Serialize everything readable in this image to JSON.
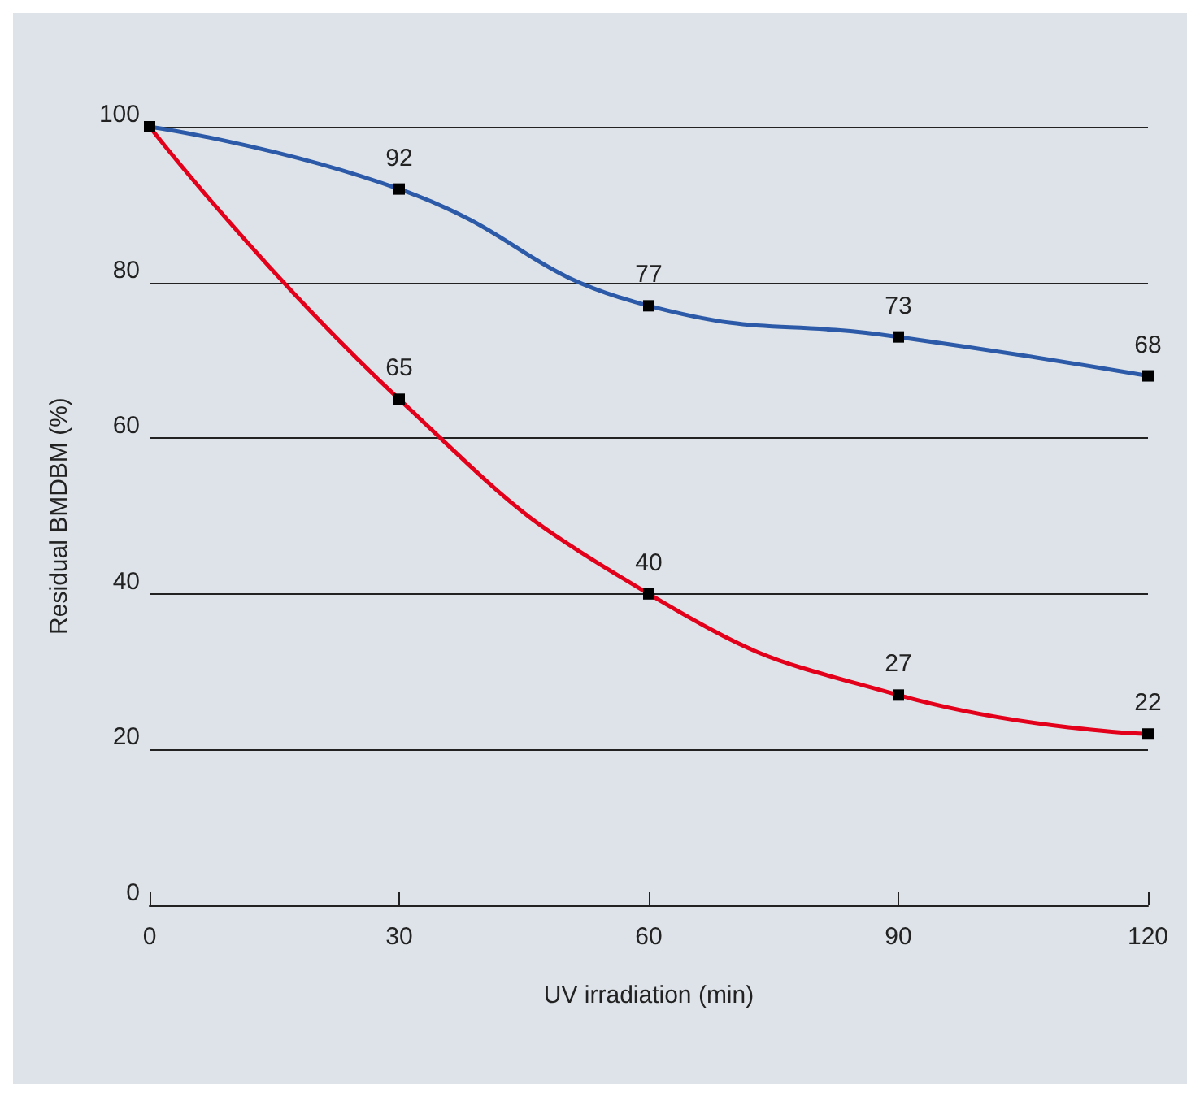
{
  "chart_data": {
    "type": "line",
    "xlabel": "UV irradiation (min)",
    "ylabel": "Residual BMDBM (%)",
    "x": [
      0,
      30,
      60,
      90,
      120
    ],
    "series": [
      {
        "color": "#2c5aa8",
        "values": [
          100,
          92,
          77,
          73,
          68
        ],
        "value_labels": [
          null,
          "92",
          "77",
          "73",
          "68"
        ]
      },
      {
        "color": "#e2001a",
        "values": [
          100,
          65,
          40,
          27,
          22
        ],
        "value_labels": [
          null,
          "65",
          "40",
          "27",
          "22"
        ]
      }
    ],
    "xlim": [
      0,
      120
    ],
    "xticks": [
      0,
      30,
      60,
      90,
      120
    ],
    "ylim": [
      0,
      100
    ],
    "yticks": [
      0,
      20,
      40,
      60,
      80,
      100
    ],
    "grid": "y",
    "marker": "square",
    "line_style": "solid"
  }
}
